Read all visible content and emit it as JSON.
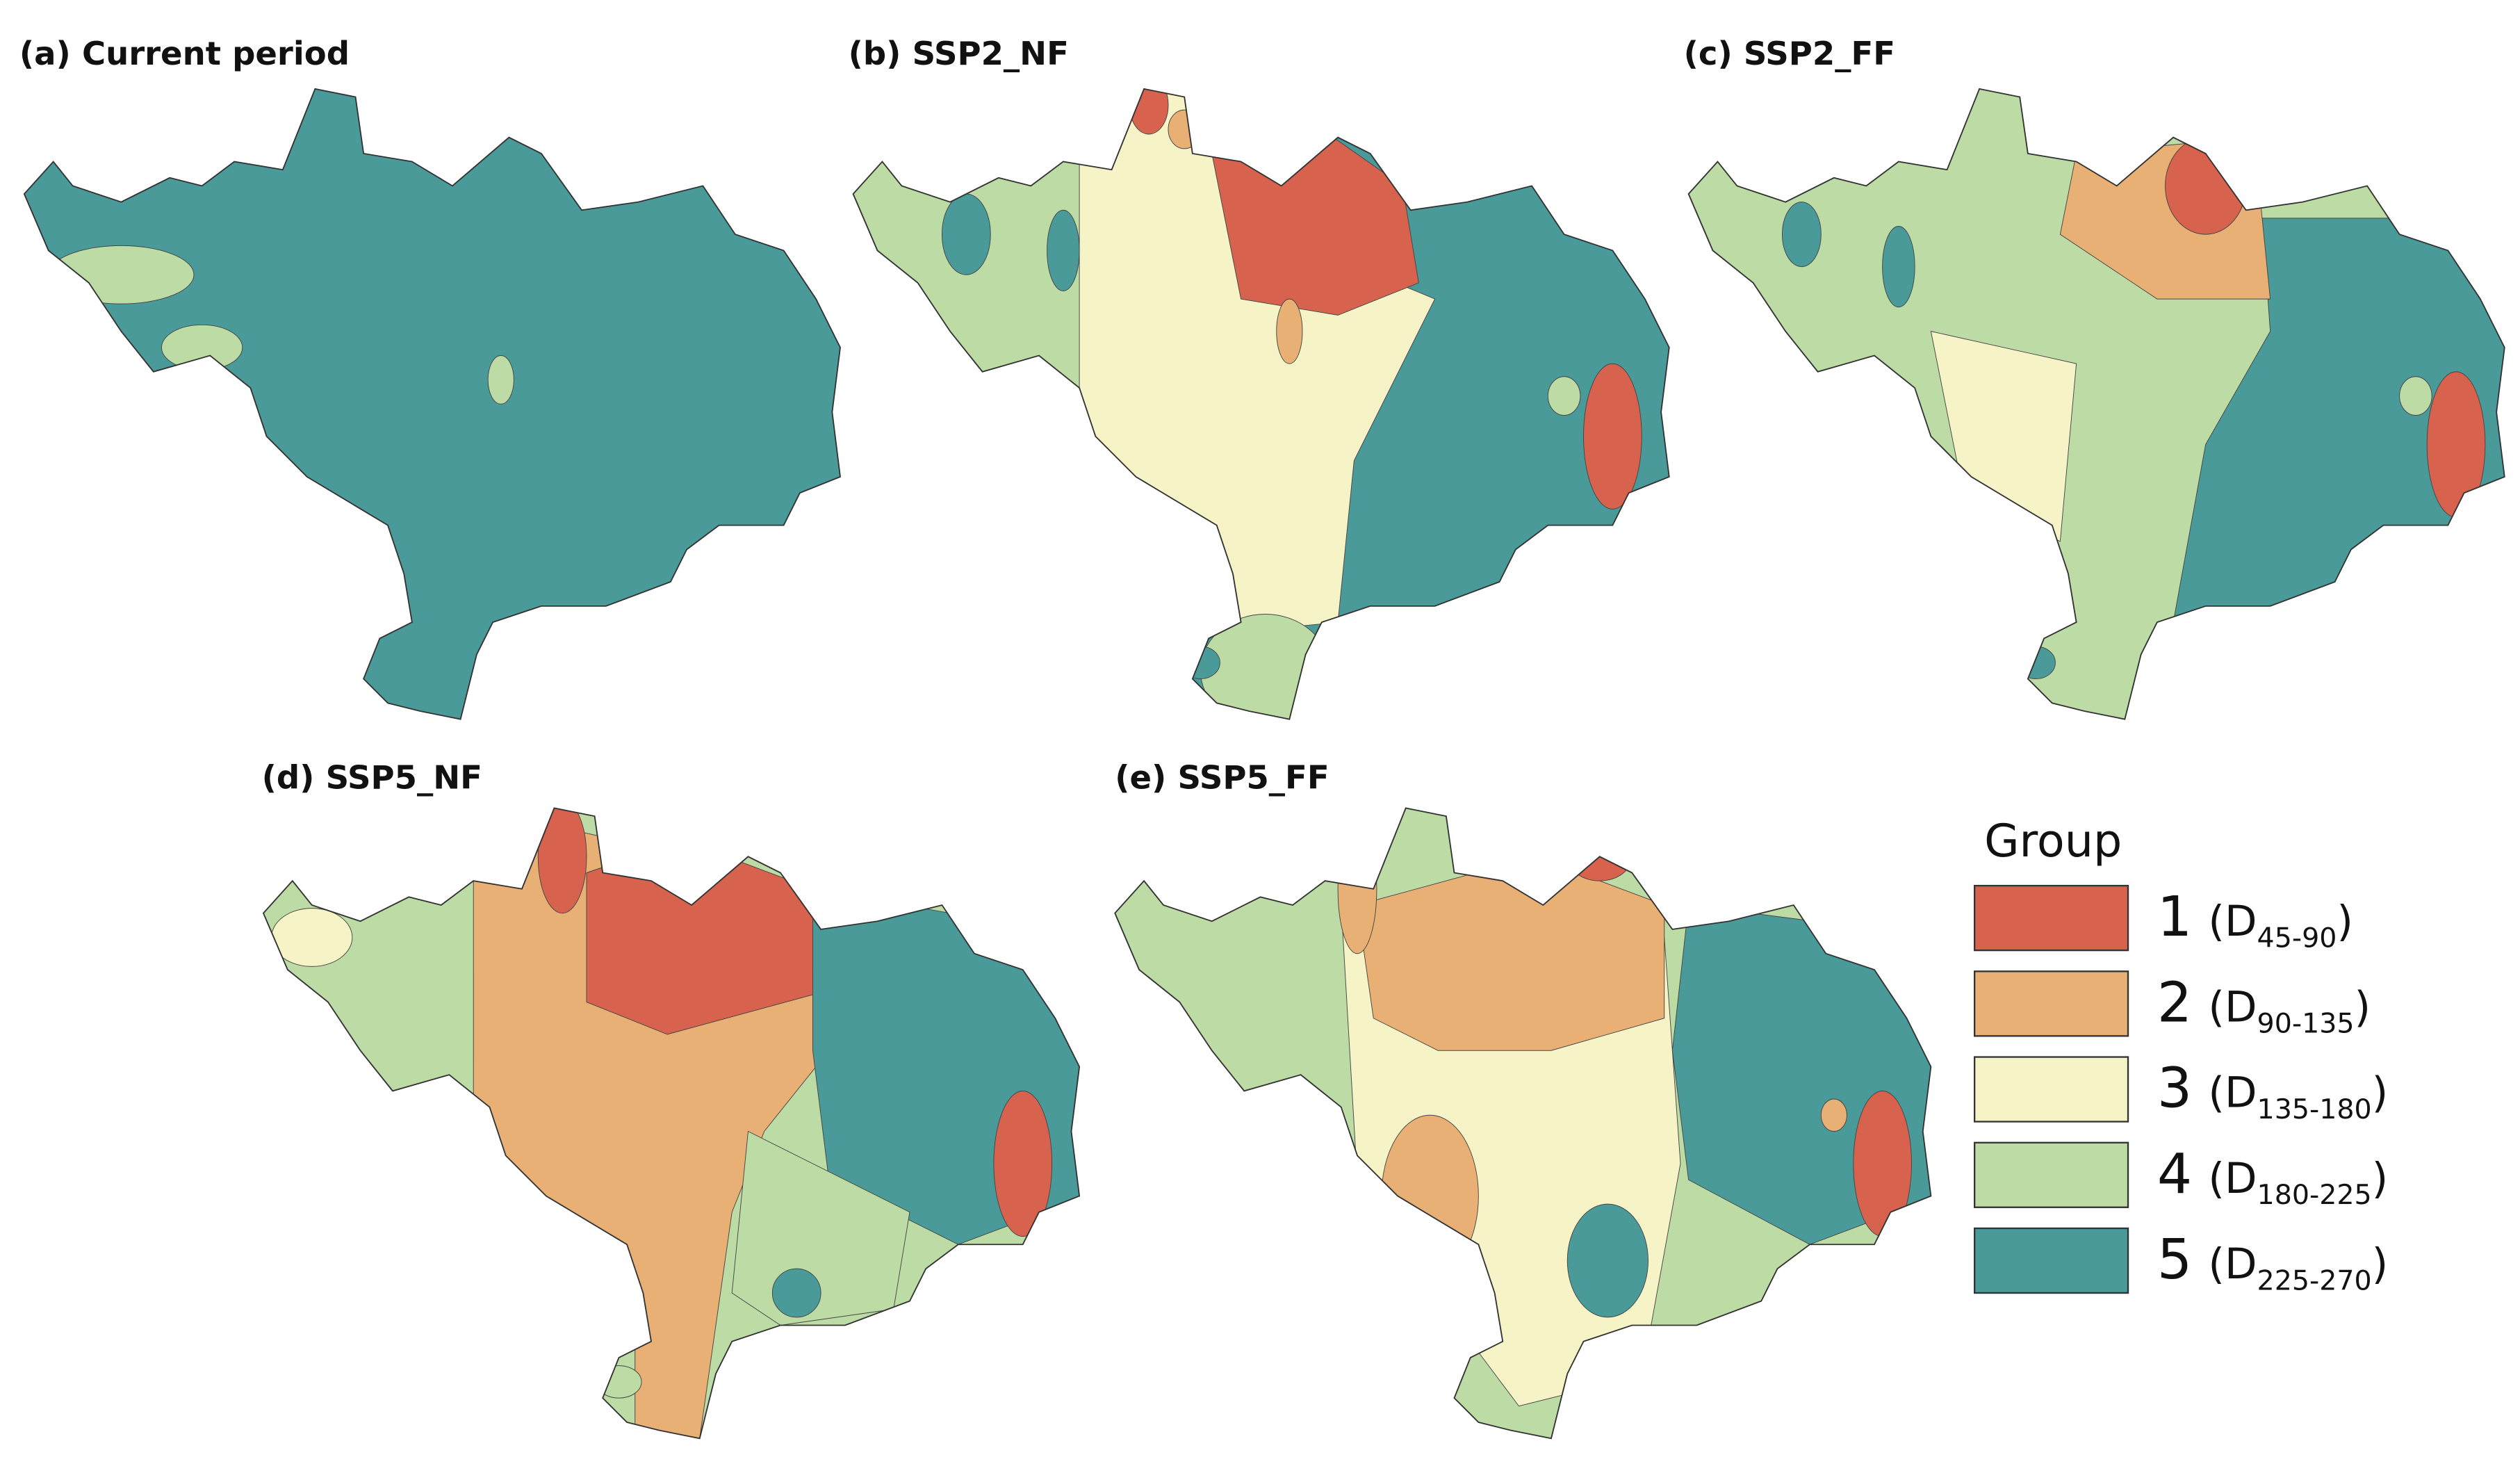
{
  "panels": [
    {
      "title": "(a) Current period"
    },
    {
      "title": "(b) SSP2_NF"
    },
    {
      "title": "(c) SSP2_FF"
    },
    {
      "title": "(d) SSP5_NF"
    },
    {
      "title": "(e) SSP5_FF"
    }
  ],
  "legend": {
    "title": "Group",
    "items": [
      {
        "label": "1",
        "prefix": "(D",
        "range": "45-90",
        "suffix": ")",
        "color": "#d7634f"
      },
      {
        "label": "2",
        "prefix": "(D",
        "range": "90-135",
        "suffix": ")",
        "color": "#e9b076"
      },
      {
        "label": "3",
        "prefix": "(D",
        "range": "135-180",
        "suffix": ")",
        "color": "#f6f3c6"
      },
      {
        "label": "4",
        "prefix": "(D",
        "range": "180-225",
        "suffix": ")",
        "color": "#bcdba5"
      },
      {
        "label": "5",
        "prefix": "(D",
        "range": "225-270",
        "suffix": ")",
        "color": "#4a9a9a"
      }
    ]
  }
}
